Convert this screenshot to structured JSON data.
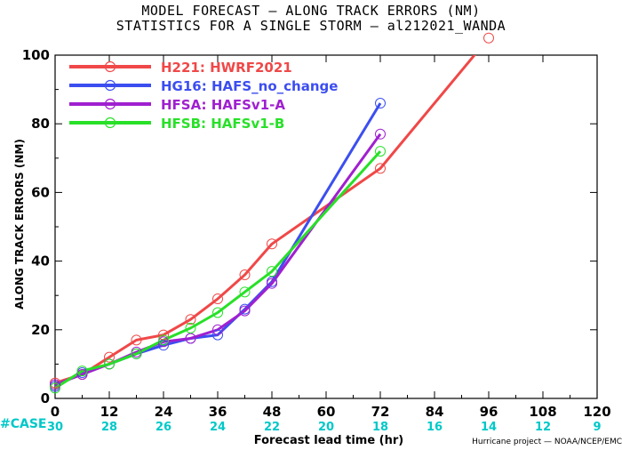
{
  "title_lines": [
    "MODEL FORECAST — ALONG TRACK ERRORS (NM)",
    "STATISTICS FOR A SINGLE STORM — al212021_WANDA"
  ],
  "credit": "Hurricane project — NOAA/NCEP/EMC",
  "case_label": "#CASE",
  "case_counts": [
    "30",
    "28",
    "26",
    "24",
    "22",
    "20",
    "18",
    "16",
    "14",
    "12",
    "9"
  ],
  "colors": {
    "case": "#00c8c8",
    "grid": "#000000"
  },
  "chart_data": {
    "type": "line",
    "xlabel": "Forecast lead time (hr)",
    "ylabel": "ALONG TRACK ERRORS (NM)",
    "xlim": [
      0,
      120
    ],
    "ylim": [
      0,
      100
    ],
    "xticks": [
      0,
      12,
      24,
      36,
      48,
      60,
      72,
      84,
      96,
      108,
      120
    ],
    "yticks": [
      0,
      20,
      40,
      60,
      80,
      100
    ],
    "legend_position": "top-left",
    "series": [
      {
        "name": "H221: HWRF2021",
        "code": "H221",
        "label": "HWRF2021",
        "color": "#f04848",
        "x": [
          0,
          6,
          12,
          18,
          24,
          30,
          36,
          42,
          48,
          72,
          96
        ],
        "y": [
          4.5,
          7,
          12,
          17,
          18.5,
          23,
          29,
          36,
          45,
          67,
          105
        ]
      },
      {
        "name": "HG16: HAFS_no_change",
        "code": "HG16",
        "label": "HAFS_no_change",
        "color": "#3c4ef0",
        "x": [
          0,
          6,
          12,
          18,
          24,
          30,
          36,
          42,
          48,
          72
        ],
        "y": [
          3.5,
          7.5,
          10,
          13,
          15.5,
          17.5,
          18.5,
          26,
          34,
          86
        ]
      },
      {
        "name": "HFSA: HAFSv1-A",
        "code": "HFSA",
        "label": "HAFSv1-A",
        "color": "#a020d0",
        "x": [
          0,
          6,
          12,
          18,
          24,
          30,
          36,
          42,
          48,
          72
        ],
        "y": [
          4,
          7,
          10,
          13.5,
          16.5,
          17.5,
          20,
          25.5,
          33.5,
          77
        ]
      },
      {
        "name": "HFSB: HAFSv1-B",
        "code": "HFSB",
        "label": "HAFSv1-B",
        "color": "#28e028",
        "x": [
          0,
          6,
          12,
          18,
          24,
          30,
          36,
          42,
          48,
          72
        ],
        "y": [
          3,
          8,
          10,
          13,
          17,
          20.5,
          25,
          31,
          37,
          72
        ]
      }
    ]
  }
}
